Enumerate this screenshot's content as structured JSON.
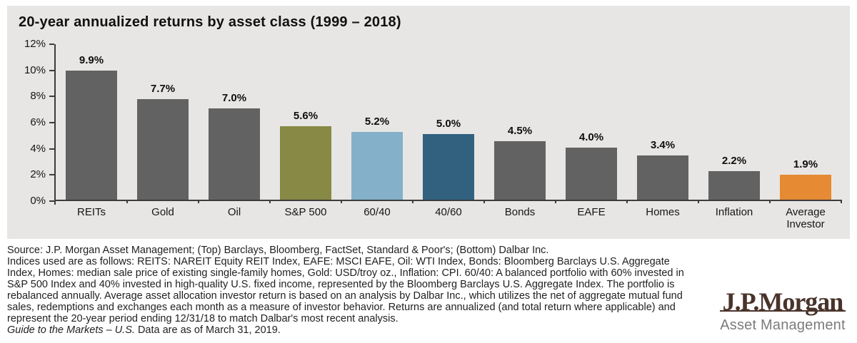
{
  "chart_data": {
    "type": "bar",
    "title": "20-year annualized returns by asset class (1999 – 2018)",
    "categories": [
      "REITs",
      "Gold",
      "Oil",
      "S&P 500",
      "60/40",
      "40/60",
      "Bonds",
      "EAFE",
      "Homes",
      "Inflation",
      "Average Investor"
    ],
    "values": [
      9.9,
      7.7,
      7.0,
      5.6,
      5.2,
      5.0,
      4.5,
      4.0,
      3.4,
      2.2,
      1.9
    ],
    "value_labels": [
      "9.9%",
      "7.7%",
      "7.0%",
      "5.6%",
      "5.2%",
      "5.0%",
      "4.5%",
      "4.0%",
      "3.4%",
      "2.2%",
      "1.9%"
    ],
    "bar_colors": [
      "#626262",
      "#626262",
      "#626262",
      "#878945",
      "#85b0c9",
      "#31617f",
      "#626262",
      "#626262",
      "#626262",
      "#626262",
      "#e68a33"
    ],
    "xlabel": "",
    "ylabel": "",
    "ylim": [
      0,
      12
    ],
    "ytick_values": [
      12,
      10,
      8,
      6,
      4,
      2,
      0
    ],
    "ytick_labels": [
      "12%",
      "10%",
      "8%",
      "6%",
      "4%",
      "2%",
      "0%"
    ],
    "grid": false,
    "legend": false,
    "panel_background": "#e7e6e4"
  },
  "footer": {
    "lines": [
      "Source: J.P. Morgan Asset Management; (Top) Barclays, Bloomberg, FactSet, Standard & Poor's; (Bottom) Dalbar Inc.",
      "Indices used are as follows: REITS: NAREIT Equity REIT Index, EAFE: MSCI EAFE, Oil: WTI Index, Bonds: Bloomberg Barclays U.S. Aggregate",
      "Index, Homes: median sale price of existing single-family homes, Gold: USD/troy oz., Inflation: CPI. 60/40: A balanced portfolio with 60% invested in",
      "S&P 500 Index and 40% invested in high-quality U.S. fixed income, represented by the Bloomberg Barclays U.S. Aggregate Index. The portfolio is",
      "rebalanced annually. Average asset allocation investor return is based on an analysis by Dalbar Inc., which utilizes the net of aggregate mutual fund",
      "sales, redemptions and exchanges each month as a measure of investor behavior. Returns are annualized (and total return where applicable) and",
      "represent the 20-year period ending 12/31/18 to match Dalbar's most recent analysis."
    ],
    "guide_italic": "Guide to the Markets – U.S.",
    "guide_rest": " Data are as of March 31, 2019."
  },
  "logo": {
    "name": "J.P.Morgan",
    "subtitle": "Asset Management",
    "name_color": "#49332a",
    "subtitle_color": "#7b7b7b"
  }
}
